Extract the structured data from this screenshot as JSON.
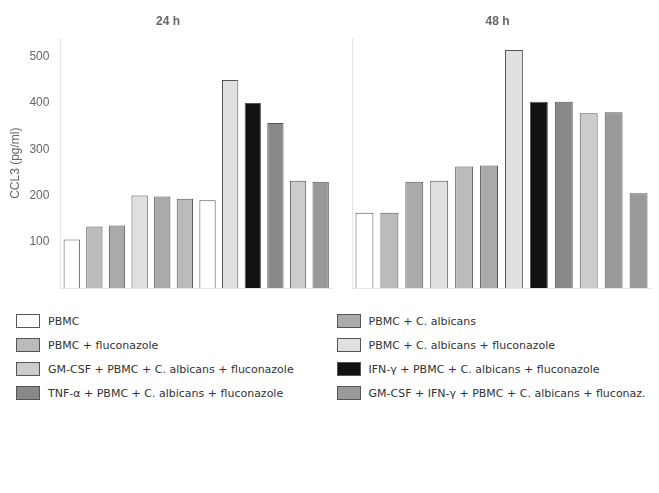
{
  "chart_data": [
    {
      "type": "bar",
      "title": "24 h",
      "ylabel": "CCL3 (pg/ml)",
      "categories": [
        null,
        null,
        null,
        null,
        null,
        null,
        null,
        null,
        null,
        null,
        null,
        null
      ],
      "series": [
        {
          "name": "PBMC",
          "color": "#ffffff",
          "values": [
            105,
            null,
            null,
            null,
            null,
            null,
            190,
            null,
            null,
            null,
            null,
            null
          ]
        },
        {
          "name": "PBMC + fluconazole",
          "color": "#bbbbbb",
          "values": [
            null,
            133,
            null,
            null,
            null,
            193,
            null,
            null,
            null,
            null,
            null,
            null
          ]
        },
        {
          "name": "GM-CSF + PBMC + C. albicans + fluconazole",
          "color": "#cccccc",
          "values": [
            null,
            null,
            null,
            null,
            null,
            null,
            null,
            null,
            null,
            null,
            232,
            null
          ]
        },
        {
          "name": "TNF-α + PBMC + C. albicans + fluconazole",
          "color": "#888888",
          "values": [
            null,
            null,
            null,
            null,
            null,
            null,
            null,
            null,
            null,
            357,
            null,
            null
          ]
        },
        {
          "name": "PBMC + C. albicans",
          "color": "#aaaaaa",
          "values": [
            null,
            null,
            135,
            null,
            198,
            null,
            null,
            null,
            null,
            null,
            null,
            null
          ]
        },
        {
          "name": "PBMC + C. albicans + fluconazole",
          "color": "#e0e0e0",
          "values": [
            null,
            null,
            null,
            200,
            null,
            null,
            null,
            450,
            null,
            null,
            null,
            null
          ]
        },
        {
          "name": "IFN-γ + PBMC + C. albicans + fluconazole",
          "color": "#111111",
          "values": [
            null,
            null,
            null,
            null,
            null,
            null,
            null,
            null,
            400,
            null,
            null,
            null
          ]
        },
        {
          "name": "GM-CSF + IFN-γ + PBMC + C. albicans + fluconaz.",
          "color": "#999999",
          "values": [
            null,
            null,
            null,
            null,
            null,
            null,
            null,
            null,
            null,
            null,
            null,
            230
          ]
        }
      ],
      "ylim": [
        0,
        540
      ],
      "yticks": [
        100,
        200,
        300,
        400,
        500
      ],
      "grid": false,
      "tick_labels": "y",
      "legend": "bottom"
    },
    {
      "type": "bar",
      "title": "48 h",
      "categories": [
        null,
        null,
        null,
        null,
        null,
        null,
        null,
        null,
        null,
        null,
        null,
        null
      ],
      "series": [
        {
          "name": "PBMC",
          "color": "#ffffff",
          "values": [
            163,
            null,
            null,
            null,
            null,
            null,
            null,
            null,
            null,
            null,
            null,
            null
          ]
        },
        {
          "name": "PBMC + fluconazole",
          "color": "#bbbbbb",
          "values": [
            null,
            163,
            null,
            null,
            263,
            null,
            null,
            null,
            null,
            null,
            null,
            null
          ]
        },
        {
          "name": "GM-CSF + PBMC + C. albicans + fluconazole",
          "color": "#cccccc",
          "values": [
            null,
            null,
            null,
            null,
            null,
            null,
            null,
            null,
            null,
            378,
            null,
            null
          ]
        },
        {
          "name": "TNF-α + PBMC + C. albicans + fluconazole",
          "color": "#888888",
          "values": [
            null,
            null,
            null,
            null,
            null,
            null,
            null,
            null,
            403,
            null,
            null,
            null
          ]
        },
        {
          "name": "PBMC + C. albicans",
          "color": "#aaaaaa",
          "values": [
            null,
            null,
            230,
            null,
            null,
            265,
            null,
            null,
            null,
            null,
            null,
            null
          ]
        },
        {
          "name": "PBMC + C. albicans + fluconazole",
          "color": "#e0e0e0",
          "values": [
            null,
            null,
            null,
            232,
            null,
            null,
            515,
            null,
            null,
            null,
            null,
            null
          ]
        },
        {
          "name": "IFN-γ + PBMC + C. albicans + fluconazole",
          "color": "#111111",
          "values": [
            null,
            null,
            null,
            null,
            null,
            null,
            null,
            403,
            null,
            null,
            null,
            null
          ]
        },
        {
          "name": "GM-CSF + IFN-γ + PBMC + C. albicans + fluconaz.",
          "color": "#999999",
          "values": [
            null,
            null,
            null,
            null,
            null,
            null,
            null,
            null,
            null,
            null,
            380,
            205
          ]
        }
      ],
      "ylim": [
        0,
        540
      ],
      "yticks": [
        100,
        200,
        300,
        400,
        500
      ],
      "grid": false,
      "tick_labels": false
    }
  ]
}
